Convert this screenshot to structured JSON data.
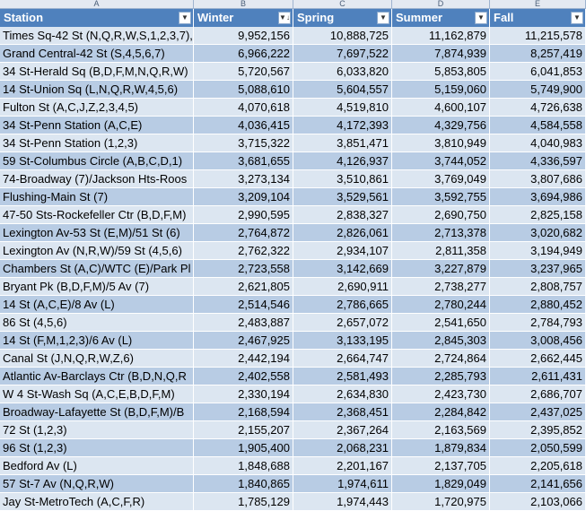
{
  "column_letters": [
    "A",
    "B",
    "C",
    "D",
    "E"
  ],
  "headers": [
    "Station",
    "Winter",
    "Spring",
    "Summer",
    "Fall"
  ],
  "sort_indicator": "↓",
  "rows": [
    [
      "Times Sq-42 St (N,Q,R,W,S,1,2,3,7),",
      "9,952,156",
      "10,888,725",
      "11,162,879",
      "11,215,578"
    ],
    [
      "Grand Central-42 St (S,4,5,6,7)",
      "6,966,222",
      "7,697,522",
      "7,874,939",
      "8,257,419"
    ],
    [
      "34 St-Herald Sq (B,D,F,M,N,Q,R,W)",
      "5,720,567",
      "6,033,820",
      "5,853,805",
      "6,041,853"
    ],
    [
      "14 St-Union Sq (L,N,Q,R,W,4,5,6)",
      "5,088,610",
      "5,604,557",
      "5,159,060",
      "5,749,900"
    ],
    [
      "Fulton St (A,C,J,Z,2,3,4,5)",
      "4,070,618",
      "4,519,810",
      "4,600,107",
      "4,726,638"
    ],
    [
      "34 St-Penn Station (A,C,E)",
      "4,036,415",
      "4,172,393",
      "4,329,756",
      "4,584,558"
    ],
    [
      "34 St-Penn Station (1,2,3)",
      "3,715,322",
      "3,851,471",
      "3,810,949",
      "4,040,983"
    ],
    [
      "59 St-Columbus Circle (A,B,C,D,1)",
      "3,681,655",
      "4,126,937",
      "3,744,052",
      "4,336,597"
    ],
    [
      "74-Broadway (7)/Jackson Hts-Roos",
      "3,273,134",
      "3,510,861",
      "3,769,049",
      "3,807,686"
    ],
    [
      "Flushing-Main St (7)",
      "3,209,104",
      "3,529,561",
      "3,592,755",
      "3,694,986"
    ],
    [
      "47-50 Sts-Rockefeller Ctr (B,D,F,M)",
      "2,990,595",
      "2,838,327",
      "2,690,750",
      "2,825,158"
    ],
    [
      "Lexington Av-53 St (E,M)/51 St (6)",
      "2,764,872",
      "2,826,061",
      "2,713,378",
      "3,020,682"
    ],
    [
      "Lexington Av (N,R,W)/59 St (4,5,6)",
      "2,762,322",
      "2,934,107",
      "2,811,358",
      "3,194,949"
    ],
    [
      "Chambers St (A,C)/WTC (E)/Park Pl",
      "2,723,558",
      "3,142,669",
      "3,227,879",
      "3,237,965"
    ],
    [
      "Bryant Pk (B,D,F,M)/5 Av (7)",
      "2,621,805",
      "2,690,911",
      "2,738,277",
      "2,808,757"
    ],
    [
      "14 St (A,C,E)/8 Av (L)",
      "2,514,546",
      "2,786,665",
      "2,780,244",
      "2,880,452"
    ],
    [
      "86 St (4,5,6)",
      "2,483,887",
      "2,657,072",
      "2,541,650",
      "2,784,793"
    ],
    [
      "14 St (F,M,1,2,3)/6 Av (L)",
      "2,467,925",
      "3,133,195",
      "2,845,303",
      "3,008,456"
    ],
    [
      "Canal St (J,N,Q,R,W,Z,6)",
      "2,442,194",
      "2,664,747",
      "2,724,864",
      "2,662,445"
    ],
    [
      "Atlantic Av-Barclays Ctr (B,D,N,Q,R",
      "2,402,558",
      "2,581,493",
      "2,285,793",
      "2,611,431"
    ],
    [
      "W 4 St-Wash Sq (A,C,E,B,D,F,M)",
      "2,330,194",
      "2,634,830",
      "2,423,730",
      "2,686,707"
    ],
    [
      "Broadway-Lafayette St (B,D,F,M)/B",
      "2,168,594",
      "2,368,451",
      "2,284,842",
      "2,437,025"
    ],
    [
      "72 St (1,2,3)",
      "2,155,207",
      "2,367,264",
      "2,163,569",
      "2,395,852"
    ],
    [
      "96 St (1,2,3)",
      "1,905,400",
      "2,068,231",
      "1,879,834",
      "2,050,599"
    ],
    [
      "Bedford Av (L)",
      "1,848,688",
      "2,201,167",
      "2,137,705",
      "2,205,618"
    ],
    [
      "57 St-7 Av (N,Q,R,W)",
      "1,840,865",
      "1,974,611",
      "1,829,049",
      "2,141,656"
    ],
    [
      "Jay St-MetroTech (A,C,F,R)",
      "1,785,129",
      "1,974,443",
      "1,720,975",
      "2,103,066"
    ]
  ]
}
